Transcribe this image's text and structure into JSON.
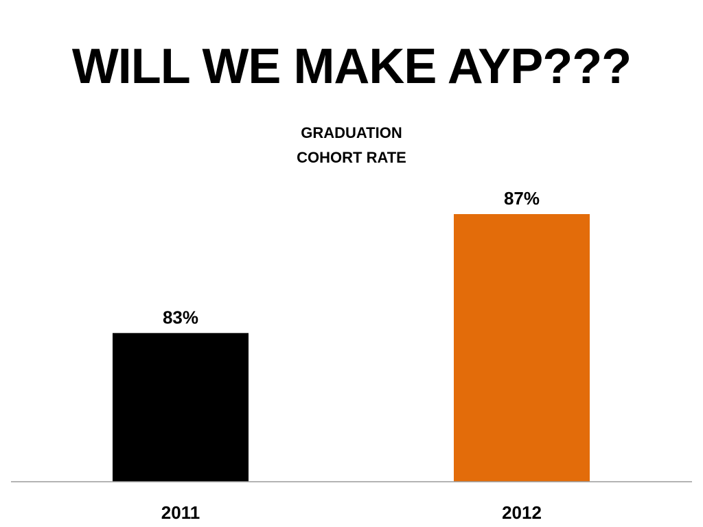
{
  "slide": {
    "title": "WILL WE MAKE AYP???"
  },
  "chart_data": {
    "type": "bar",
    "title_lines": [
      "GRADUATION",
      "COHORT RATE"
    ],
    "categories": [
      "2011",
      "2012"
    ],
    "values": [
      83,
      87
    ],
    "value_labels": [
      "83%",
      "87%"
    ],
    "colors": [
      "#000000",
      "#e36c0a"
    ],
    "xlabel": "",
    "ylabel": "",
    "ylim": [
      78,
      88
    ],
    "grid": false,
    "legend": "none"
  }
}
